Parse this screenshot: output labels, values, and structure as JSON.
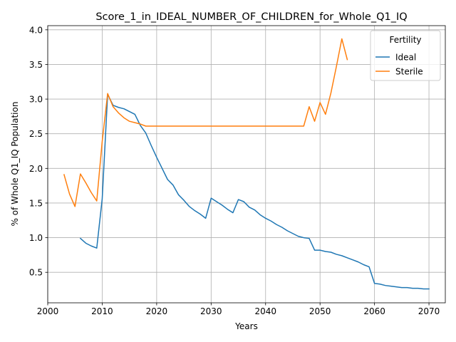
{
  "chart_data": {
    "type": "line",
    "title": "Score_1_in_IDEAL_NUMBER_OF_CHILDREN_for_Whole_Q1_IQ",
    "xlabel": "Years",
    "ylabel": "% of Whole Q1_IQ Population",
    "xlim": [
      2000,
      2073
    ],
    "ylim": [
      0.06,
      4.06
    ],
    "xticks": [
      2000,
      2010,
      2020,
      2030,
      2040,
      2050,
      2060,
      2070
    ],
    "xtick_labels": [
      "2000",
      "2010",
      "2020",
      "2030",
      "2040",
      "2050",
      "2060",
      "2070"
    ],
    "yticks": [
      0.5,
      1.0,
      1.5,
      2.0,
      2.5,
      3.0,
      3.5,
      4.0
    ],
    "ytick_labels": [
      "0.5",
      "1.0",
      "1.5",
      "2.0",
      "2.5",
      "3.0",
      "3.5",
      "4.0"
    ],
    "grid": true,
    "legend": {
      "title": "Fertility",
      "placement": "top-right"
    },
    "series": [
      {
        "name": "Ideal",
        "color": "#1f77b4",
        "x": [
          2006,
          2007,
          2008,
          2009,
          2010,
          2011,
          2012,
          2013,
          2014,
          2015,
          2016,
          2017,
          2018,
          2019,
          2020,
          2021,
          2022,
          2023,
          2024,
          2025,
          2026,
          2027,
          2028,
          2029,
          2030,
          2031,
          2032,
          2033,
          2034,
          2035,
          2036,
          2037,
          2038,
          2039,
          2040,
          2041,
          2042,
          2043,
          2044,
          2045,
          2046,
          2047,
          2048,
          2049,
          2050,
          2051,
          2052,
          2053,
          2054,
          2055,
          2056,
          2057,
          2058,
          2059,
          2060,
          2061,
          2062,
          2063,
          2064,
          2065,
          2066,
          2067,
          2068,
          2069,
          2070
        ],
        "y": [
          0.99,
          0.92,
          0.88,
          0.85,
          1.56,
          3.07,
          2.91,
          2.88,
          2.86,
          2.82,
          2.78,
          2.62,
          2.51,
          2.33,
          2.16,
          2.0,
          1.84,
          1.76,
          1.62,
          1.54,
          1.45,
          1.39,
          1.34,
          1.28,
          1.57,
          1.52,
          1.47,
          1.41,
          1.36,
          1.55,
          1.52,
          1.44,
          1.4,
          1.33,
          1.28,
          1.24,
          1.19,
          1.15,
          1.1,
          1.06,
          1.02,
          1.0,
          0.99,
          0.82,
          0.82,
          0.8,
          0.79,
          0.76,
          0.74,
          0.71,
          0.68,
          0.65,
          0.61,
          0.58,
          0.34,
          0.33,
          0.31,
          0.3,
          0.29,
          0.28,
          0.28,
          0.27,
          0.27,
          0.26,
          0.26
        ]
      },
      {
        "name": "Sterile",
        "color": "#ff7f0e",
        "x": [
          2003,
          2004,
          2005,
          2006,
          2007,
          2008,
          2009,
          2010,
          2011,
          2012,
          2013,
          2014,
          2015,
          2016,
          2017,
          2018,
          2019,
          2020,
          2021,
          2022,
          2023,
          2024,
          2025,
          2026,
          2027,
          2028,
          2029,
          2030,
          2031,
          2032,
          2033,
          2034,
          2035,
          2036,
          2037,
          2038,
          2039,
          2040,
          2041,
          2042,
          2043,
          2044,
          2045,
          2046,
          2047,
          2048,
          2049,
          2050,
          2051,
          2052,
          2053,
          2054,
          2055
        ],
        "y": [
          1.91,
          1.63,
          1.45,
          1.92,
          1.79,
          1.65,
          1.53,
          2.39,
          3.08,
          2.89,
          2.8,
          2.73,
          2.68,
          2.66,
          2.64,
          2.61,
          2.61,
          2.61,
          2.61,
          2.61,
          2.61,
          2.61,
          2.61,
          2.61,
          2.61,
          2.61,
          2.61,
          2.61,
          2.61,
          2.61,
          2.61,
          2.61,
          2.61,
          2.61,
          2.61,
          2.61,
          2.61,
          2.61,
          2.61,
          2.61,
          2.61,
          2.61,
          2.61,
          2.61,
          2.61,
          2.89,
          2.68,
          2.95,
          2.78,
          3.09,
          3.47,
          3.87,
          3.57
        ]
      }
    ]
  }
}
